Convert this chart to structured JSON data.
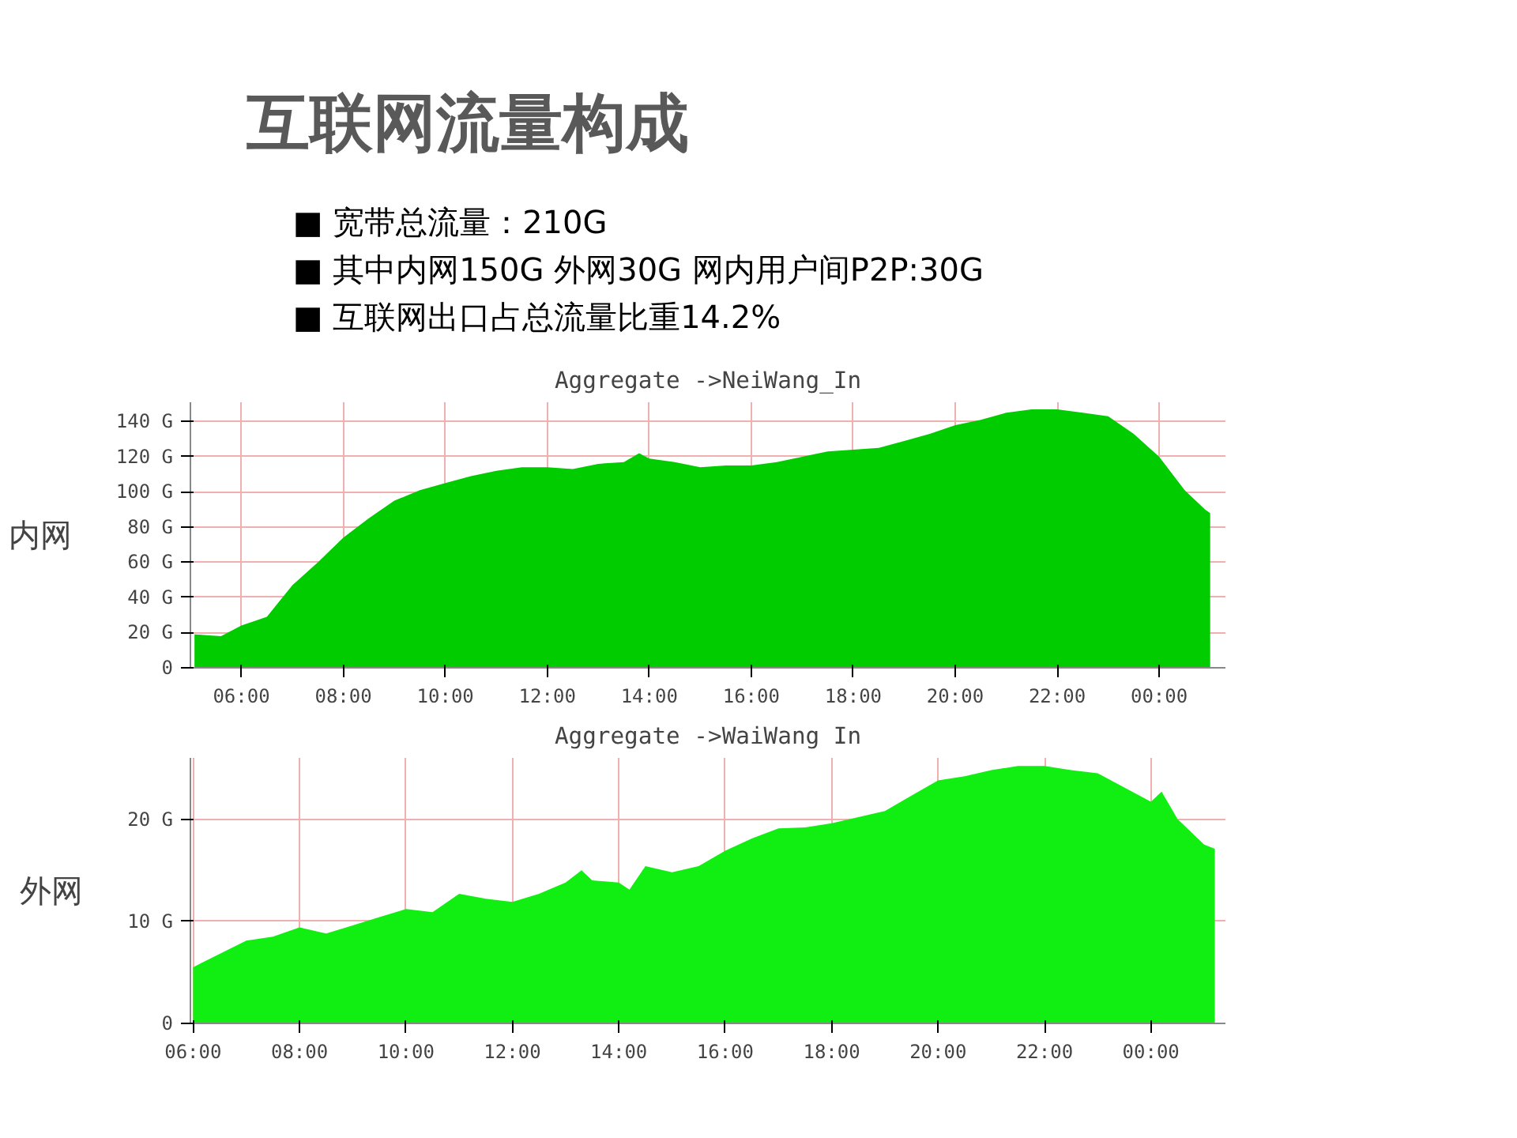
{
  "chart_data": [
    {
      "type": "other",
      "title": "互联网流量构成",
      "annotations": [
        "■ 宽带总流量：210G",
        "■ 其中内网150G  外网30G   网内用户间P2P:30G",
        "■ 互联网出口占总流量比重14.2%"
      ]
    },
    {
      "type": "area",
      "title": "Aggregate ->NeiWang_In",
      "ylabel": "内网",
      "color": "#00cc00",
      "grid": true,
      "x": [
        5.08,
        5.6,
        6.0,
        6.5,
        7.0,
        7.5,
        8.0,
        8.5,
        9.0,
        9.5,
        10.0,
        10.5,
        11.0,
        11.5,
        12.0,
        12.5,
        13.0,
        13.5,
        13.8,
        14.0,
        14.5,
        15.0,
        15.5,
        16.0,
        16.5,
        17.0,
        17.5,
        18.0,
        18.5,
        19.0,
        19.5,
        20.0,
        20.5,
        21.0,
        21.5,
        22.0,
        22.5,
        23.0,
        23.5,
        24.0,
        24.5,
        24.9,
        25.0
      ],
      "values": [
        19,
        18,
        24,
        29,
        47,
        60,
        74,
        85,
        95,
        101,
        105,
        109,
        112,
        114,
        114,
        113,
        116,
        117,
        122,
        119,
        117,
        114,
        115,
        115,
        117,
        120,
        123,
        124,
        125,
        129,
        133,
        138,
        141,
        145,
        147,
        147,
        145,
        143,
        133,
        120,
        101,
        90,
        88
      ],
      "xlim": [
        5.0,
        25.3
      ],
      "ylim": [
        0,
        151
      ],
      "xticks": [
        {
          "value": 6,
          "label": "06:00"
        },
        {
          "value": 8,
          "label": "08:00"
        },
        {
          "value": 10,
          "label": "10:00"
        },
        {
          "value": 12,
          "label": "12:00"
        },
        {
          "value": 14,
          "label": "14:00"
        },
        {
          "value": 16,
          "label": "16:00"
        },
        {
          "value": 18,
          "label": "18:00"
        },
        {
          "value": 20,
          "label": "20:00"
        },
        {
          "value": 22,
          "label": "22:00"
        },
        {
          "value": 24,
          "label": "00:00"
        }
      ],
      "yticks": [
        0,
        {
          "value": 20,
          "label": "20 G"
        },
        {
          "value": 40,
          "label": "40 G"
        },
        {
          "value": 60,
          "label": "60 G"
        },
        {
          "value": 80,
          "label": "80 G"
        },
        {
          "value": 100,
          "label": "100 G"
        },
        {
          "value": 120,
          "label": "120 G"
        },
        {
          "value": 140,
          "label": "140 G"
        }
      ]
    },
    {
      "type": "area",
      "title": "Aggregate ->WaiWang In",
      "ylabel": "外网",
      "color": "#11ee11",
      "grid": true,
      "x": [
        6.0,
        6.5,
        7.0,
        7.5,
        8.0,
        8.5,
        9.0,
        9.5,
        10.0,
        10.5,
        11.0,
        11.5,
        12.0,
        12.5,
        13.0,
        13.3,
        13.5,
        14.0,
        14.2,
        14.5,
        15.0,
        15.5,
        16.0,
        16.5,
        17.0,
        17.5,
        18.0,
        18.5,
        19.0,
        19.5,
        20.0,
        20.5,
        21.0,
        21.5,
        22.0,
        22.5,
        23.0,
        23.5,
        24.0,
        24.2,
        24.5,
        25.0,
        25.2
      ],
      "values": [
        5.5,
        6.8,
        8.1,
        8.5,
        9.4,
        8.8,
        9.6,
        10.4,
        11.2,
        10.9,
        12.7,
        12.2,
        11.9,
        12.7,
        13.8,
        15.0,
        14.0,
        13.8,
        13.1,
        15.4,
        14.8,
        15.4,
        16.9,
        18.1,
        19.1,
        19.2,
        19.6,
        20.2,
        20.8,
        22.3,
        23.8,
        24.2,
        24.8,
        25.2,
        25.2,
        24.8,
        24.5,
        23.1,
        21.7,
        22.7,
        20.0,
        17.5,
        17.1
      ],
      "xlim": [
        5.95,
        25.4
      ],
      "ylim": [
        0,
        26
      ],
      "xticks": [
        {
          "value": 6,
          "label": "06:00"
        },
        {
          "value": 8,
          "label": "08:00"
        },
        {
          "value": 10,
          "label": "10:00"
        },
        {
          "value": 12,
          "label": "12:00"
        },
        {
          "value": 14,
          "label": "14:00"
        },
        {
          "value": 16,
          "label": "16:00"
        },
        {
          "value": 18,
          "label": "18:00"
        },
        {
          "value": 20,
          "label": "20:00"
        },
        {
          "value": 22,
          "label": "22:00"
        },
        {
          "value": 24,
          "label": "00:00"
        }
      ],
      "yticks": [
        0,
        {
          "value": 10,
          "label": "10 G"
        },
        {
          "value": 20,
          "label": "20 G"
        }
      ]
    }
  ]
}
